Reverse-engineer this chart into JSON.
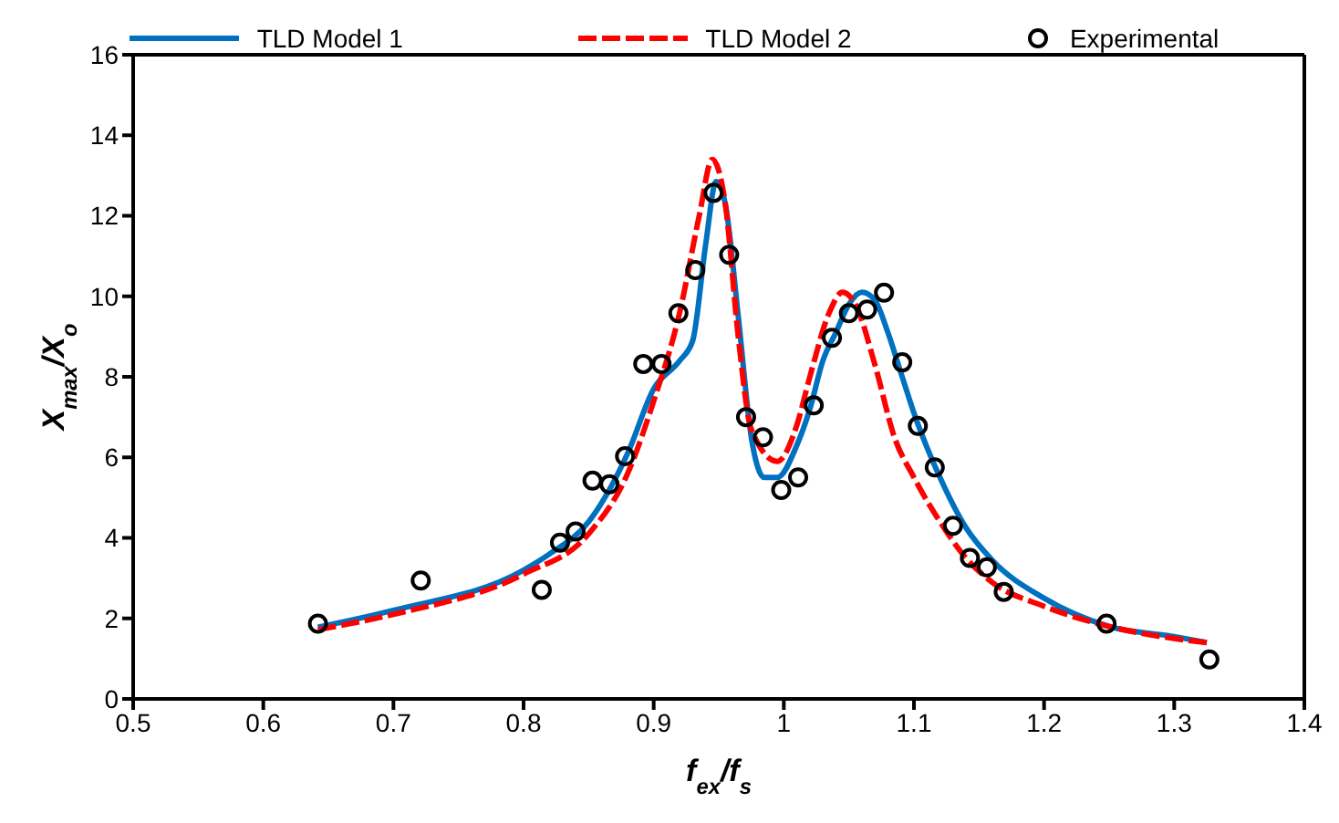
{
  "chart_data": {
    "type": "line",
    "xlabel": "f$_{ex}$/f$_{s}$",
    "ylabel": "X$_{max}$/X$_{o}$",
    "xlim": [
      0.5,
      1.4
    ],
    "xticks": [
      0.5,
      0.6,
      0.7,
      0.8,
      0.9,
      1,
      1.1,
      1.2,
      1.3,
      1.4
    ],
    "ylim": [
      0,
      16
    ],
    "yticks": [
      0,
      2,
      4,
      6,
      8,
      10,
      12,
      14,
      16
    ],
    "legend": "top",
    "series": [
      {
        "name": "TLD Model 1",
        "color": "#0070c0",
        "line_style": "solid",
        "marker": "none",
        "x": [
          0.642,
          0.7,
          0.8,
          0.82,
          0.85,
          0.88,
          0.9,
          0.92,
          0.93,
          0.94,
          0.948,
          0.955,
          0.965,
          0.975,
          0.985,
          0.995,
          1.01,
          1.02,
          1.03,
          1.04,
          1.05,
          1.06,
          1.07,
          1.08,
          1.09,
          1.1,
          1.12,
          1.14,
          1.16,
          1.2,
          1.25,
          1.3,
          1.325
        ],
        "values": [
          1.78,
          2.2,
          3.2,
          3.6,
          4.4,
          6.1,
          7.7,
          8.4,
          8.9,
          11.3,
          12.85,
          12.3,
          9.5,
          6.5,
          5.5,
          5.5,
          6.3,
          7.2,
          8.4,
          9.1,
          9.8,
          10.1,
          9.9,
          9.1,
          8.1,
          7.1,
          5.5,
          4.25,
          3.45,
          2.5,
          1.8,
          1.55,
          1.4
        ]
      },
      {
        "name": "TLD Model 2",
        "color": "#ff0000",
        "line_style": "dashed",
        "marker": "none",
        "x": [
          0.642,
          0.7,
          0.8,
          0.85,
          0.88,
          0.9,
          0.92,
          0.935,
          0.945,
          0.955,
          0.965,
          0.975,
          0.995,
          1.01,
          1.02,
          1.035,
          1.045,
          1.055,
          1.07,
          1.085,
          1.1,
          1.12,
          1.14,
          1.16,
          1.2,
          1.25,
          1.3,
          1.325
        ],
        "values": [
          1.72,
          2.1,
          3.1,
          4.1,
          5.6,
          7.4,
          9.6,
          12.0,
          13.4,
          12.3,
          9.0,
          6.7,
          5.9,
          6.8,
          8.0,
          9.6,
          10.1,
          9.8,
          8.3,
          6.5,
          5.5,
          4.4,
          3.5,
          2.9,
          2.3,
          1.8,
          1.5,
          1.4
        ]
      },
      {
        "name": "Experimental",
        "type": "scatter",
        "color": "#000000",
        "marker": "circle",
        "x": [
          0.642,
          0.721,
          0.814,
          0.828,
          0.84,
          0.853,
          0.866,
          0.878,
          0.892,
          0.906,
          0.919,
          0.932,
          0.946,
          0.958,
          0.971,
          0.984,
          0.998,
          1.011,
          1.023,
          1.037,
          1.05,
          1.064,
          1.077,
          1.091,
          1.103,
          1.116,
          1.13,
          1.143,
          1.156,
          1.169,
          1.248,
          1.327
        ],
        "values": [
          1.87,
          2.94,
          2.71,
          3.88,
          4.16,
          5.42,
          5.33,
          6.03,
          8.32,
          8.32,
          9.58,
          10.65,
          12.57,
          11.03,
          7.0,
          6.5,
          5.19,
          5.5,
          7.29,
          8.97,
          9.58,
          9.67,
          10.09,
          8.36,
          6.78,
          5.75,
          4.3,
          3.5,
          3.27,
          2.66,
          1.87,
          0.98
        ]
      }
    ]
  }
}
